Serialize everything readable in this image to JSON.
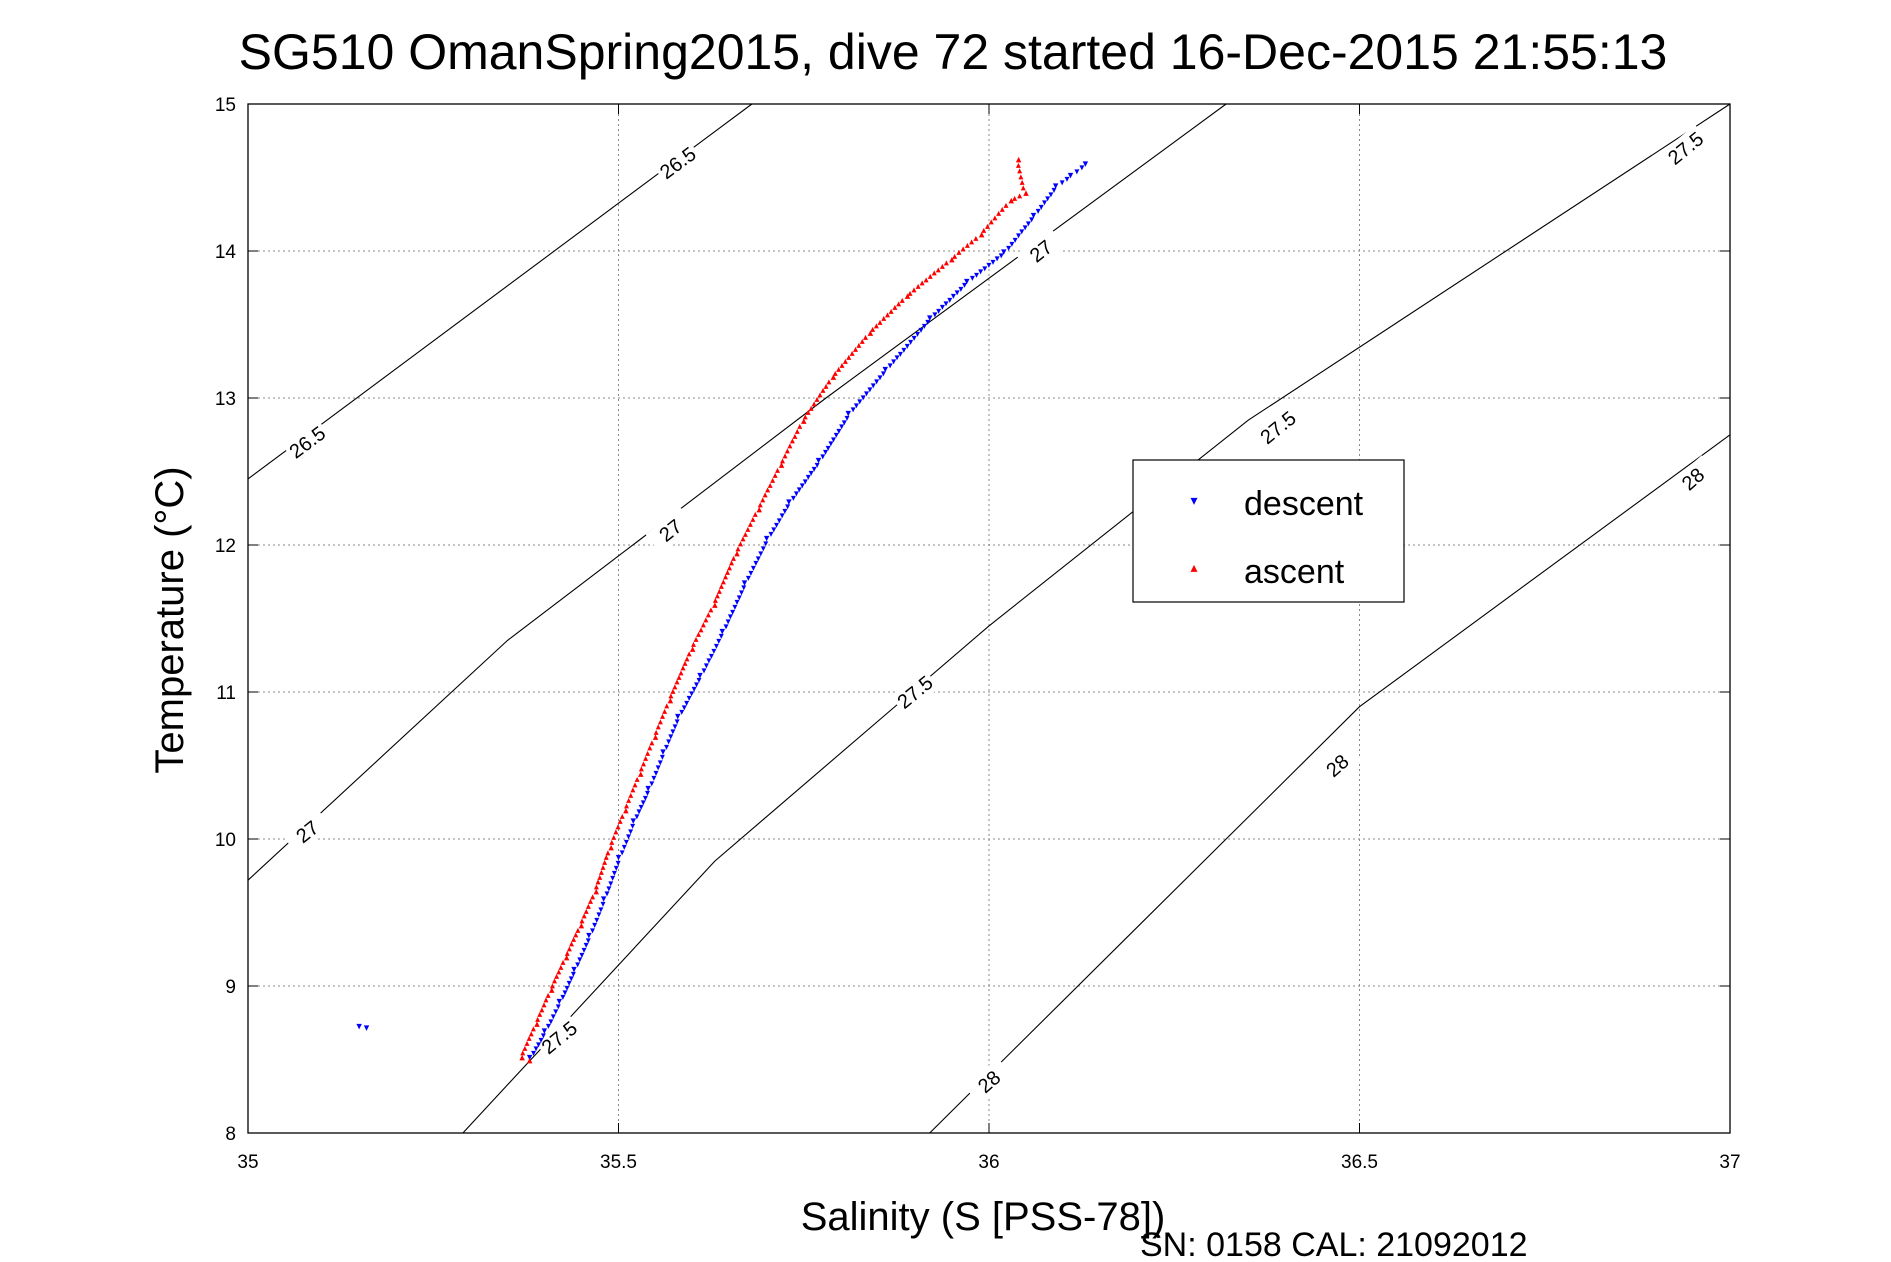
{
  "title": "SG510 OmanSpring2015, dive 72 started 16-Dec-2015 21:55:13",
  "footer": "SN: 0158  CAL: 21092012",
  "chart_data": {
    "type": "scatter",
    "xlabel": "Salinity (S [PSS-78])",
    "ylabel": "Temperature (°C)",
    "xlim": [
      35,
      37
    ],
    "ylim": [
      8,
      15
    ],
    "xticks": [
      35,
      35.5,
      36,
      36.5,
      37
    ],
    "xtick_labels": [
      "35",
      "35.5",
      "36",
      "36.5",
      "37"
    ],
    "yticks": [
      8,
      9,
      10,
      11,
      12,
      13,
      14,
      15
    ],
    "ytick_labels": [
      "8",
      "9",
      "10",
      "11",
      "12",
      "13",
      "14",
      "15"
    ],
    "grid": true,
    "legend_position": "center-right",
    "contours": [
      {
        "level": "26.5",
        "line": [
          [
            35.0,
            12.45
          ],
          [
            35.68,
            15.0
          ]
        ],
        "labels": [
          [
            35.08,
            12.7
          ],
          [
            35.58,
            14.6
          ]
        ]
      },
      {
        "level": "27",
        "line": [
          [
            35.0,
            9.72
          ],
          [
            35.35,
            11.35
          ],
          [
            35.78,
            13.0
          ],
          [
            36.32,
            15.0
          ]
        ],
        "labels": [
          [
            35.08,
            10.05
          ],
          [
            35.57,
            12.1
          ],
          [
            36.07,
            14.0
          ]
        ]
      },
      {
        "level": "27.5",
        "line": [
          [
            35.29,
            8.0
          ],
          [
            35.63,
            9.85
          ],
          [
            36.0,
            11.45
          ],
          [
            36.35,
            12.85
          ],
          [
            37.0,
            15.0
          ]
        ],
        "labels": [
          [
            35.42,
            8.65
          ],
          [
            35.9,
            11.0
          ],
          [
            36.39,
            12.8
          ],
          [
            36.94,
            14.7
          ]
        ]
      },
      {
        "level": "28",
        "line": [
          [
            35.92,
            8.0
          ],
          [
            36.5,
            10.9
          ],
          [
            37.0,
            12.75
          ]
        ],
        "labels": [
          [
            36.0,
            8.35
          ],
          [
            36.47,
            10.5
          ],
          [
            36.95,
            12.45
          ]
        ]
      }
    ],
    "series": [
      {
        "name": "descent",
        "color": "#0000ff",
        "marker": "▾",
        "x": [
          35.38,
          35.4,
          35.42,
          35.44,
          35.46,
          35.48,
          35.5,
          35.52,
          35.54,
          35.56,
          35.58,
          35.61,
          35.64,
          35.67,
          35.7,
          35.73,
          35.77,
          35.81,
          35.86,
          35.92,
          35.97,
          36.02,
          36.06,
          36.09,
          36.11,
          36.13,
          35.15,
          35.16
        ],
        "y": [
          8.52,
          8.7,
          8.9,
          9.12,
          9.35,
          9.6,
          9.88,
          10.13,
          10.35,
          10.6,
          10.84,
          11.12,
          11.42,
          11.75,
          12.05,
          12.3,
          12.58,
          12.9,
          13.2,
          13.55,
          13.8,
          14.0,
          14.25,
          14.45,
          14.52,
          14.6,
          8.73,
          8.72
        ]
      },
      {
        "name": "ascent",
        "color": "#ff0000",
        "marker": "▴",
        "x": [
          35.37,
          35.39,
          35.41,
          35.43,
          35.45,
          35.47,
          35.49,
          35.51,
          35.53,
          35.55,
          35.57,
          35.6,
          35.63,
          35.66,
          35.69,
          35.72,
          35.75,
          35.79,
          35.84,
          35.89,
          35.95,
          35.99,
          36.03,
          36.05,
          36.04,
          35.38
        ],
        "y": [
          8.52,
          8.75,
          8.98,
          9.2,
          9.42,
          9.65,
          9.95,
          10.2,
          10.45,
          10.7,
          10.95,
          11.3,
          11.6,
          11.95,
          12.25,
          12.55,
          12.85,
          13.15,
          13.45,
          13.7,
          13.95,
          14.12,
          14.35,
          14.4,
          14.63,
          8.5
        ]
      }
    ]
  }
}
